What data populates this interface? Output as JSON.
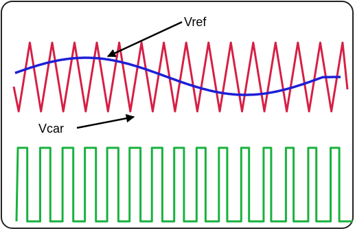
{
  "labels": {
    "reference": "Vref",
    "carrier": "Vcar"
  },
  "colors": {
    "carrier": "#d61f45",
    "reference": "#1d1fd6",
    "pwm": "#18b23e",
    "frame": "#222222",
    "arrow": "#000000"
  },
  "signals": {
    "carrier_periods": 15,
    "reference_cycles": 1,
    "pwm_pulses": 15
  }
}
